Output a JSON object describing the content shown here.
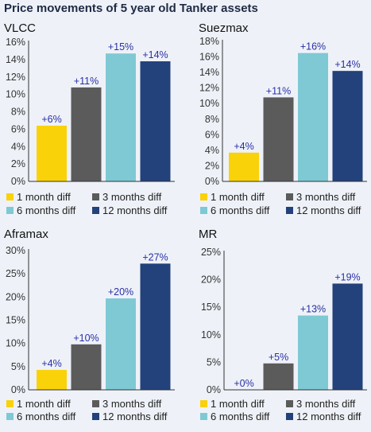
{
  "figure_title": "Price movements of 5 year old Tanker assets",
  "colors": {
    "1 month diff": "#f9d20a",
    "3 months diff": "#5b5b5b",
    "6 months diff": "#7ec9d4",
    "12 months diff": "#23417a"
  },
  "chart_data": [
    {
      "type": "bar",
      "title": "VLCC",
      "categories": [
        "1 month diff",
        "3 months diff",
        "6 months diff",
        "12 months diff"
      ],
      "values": [
        6.4,
        10.8,
        14.7,
        13.8
      ],
      "data_labels": [
        "+6%",
        "+11%",
        "+15%",
        "+14%"
      ],
      "ylim": [
        0,
        16
      ],
      "yticks": [
        0,
        2,
        4,
        6,
        8,
        10,
        12,
        14,
        16
      ],
      "ytick_labels": [
        "0%",
        "2%",
        "4%",
        "6%",
        "8%",
        "10%",
        "12%",
        "14%",
        "16%"
      ],
      "legend": [
        "1 month diff",
        "3 months diff",
        "6 months diff",
        "12 months diff"
      ],
      "legend_position": "bottom"
    },
    {
      "type": "bar",
      "title": "Suezmax",
      "categories": [
        "1 month diff",
        "3 months diff",
        "6 months diff",
        "12 months diff"
      ],
      "values": [
        3.7,
        10.8,
        16.5,
        14.2
      ],
      "data_labels": [
        "+4%",
        "+11%",
        "+16%",
        "+14%"
      ],
      "ylim": [
        0,
        18
      ],
      "yticks": [
        0,
        2,
        4,
        6,
        8,
        10,
        12,
        14,
        16,
        18
      ],
      "ytick_labels": [
        "0%",
        "2%",
        "4%",
        "6%",
        "8%",
        "10%",
        "12%",
        "14%",
        "16%",
        "18%"
      ],
      "legend": [
        "1 month diff",
        "3 months diff",
        "6 months diff",
        "12 months diff"
      ],
      "legend_position": "bottom"
    },
    {
      "type": "bar",
      "title": "Aframax",
      "categories": [
        "1 month diff",
        "3 months diff",
        "6 months diff",
        "12 months diff"
      ],
      "values": [
        4.3,
        9.8,
        19.7,
        27.2
      ],
      "data_labels": [
        "+4%",
        "+10%",
        "+20%",
        "+27%"
      ],
      "ylim": [
        0,
        30
      ],
      "yticks": [
        0,
        5,
        10,
        15,
        20,
        25,
        30
      ],
      "ytick_labels": [
        "0%",
        "5%",
        "10%",
        "15%",
        "20%",
        "25%",
        "30%"
      ],
      "legend": [
        "1 month diff",
        "3 months diff",
        "6 months diff",
        "12 months diff"
      ],
      "legend_position": "bottom"
    },
    {
      "type": "bar",
      "title": "MR",
      "categories": [
        "1 month diff",
        "3 months diff",
        "6 months diff",
        "12 months diff"
      ],
      "values": [
        0.0,
        4.8,
        13.5,
        19.3
      ],
      "data_labels": [
        "+0%",
        "+5%",
        "+13%",
        "+19%"
      ],
      "ylim": [
        0,
        25
      ],
      "yticks": [
        0,
        5,
        10,
        15,
        20,
        25
      ],
      "ytick_labels": [
        "0%",
        "5%",
        "10%",
        "15%",
        "20%",
        "25%"
      ],
      "legend": [
        "1 month diff",
        "3 months diff",
        "6 months diff",
        "12 months diff"
      ],
      "legend_position": "bottom"
    }
  ]
}
